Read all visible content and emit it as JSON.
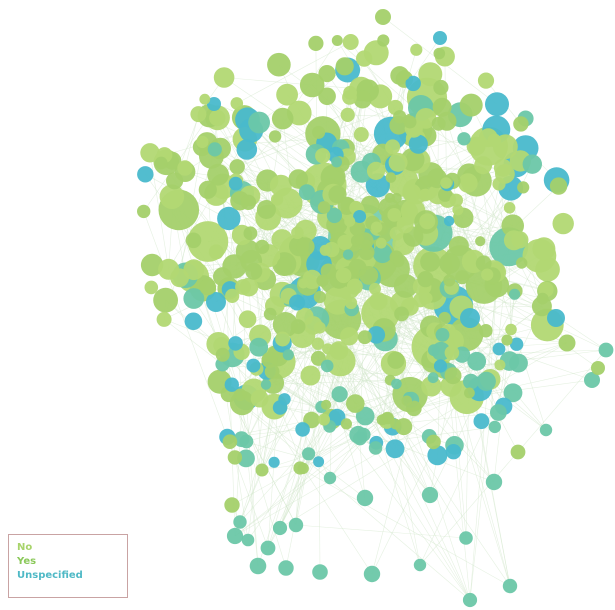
{
  "legend": {
    "items": [
      {
        "label": "No",
        "color": "#a8d46b"
      },
      {
        "label": "Yes",
        "color": "#8bc95a"
      },
      {
        "label": "Unspecified",
        "color": "#4fb9c6"
      }
    ]
  },
  "palette": {
    "edge": "#cfe6c9",
    "node_green": "#a4d06a",
    "node_green_light": "#b2d873",
    "node_teal": "#6cc7a8",
    "node_cyan": "#49b9cc",
    "node_mint": "#79cdb0"
  }
}
